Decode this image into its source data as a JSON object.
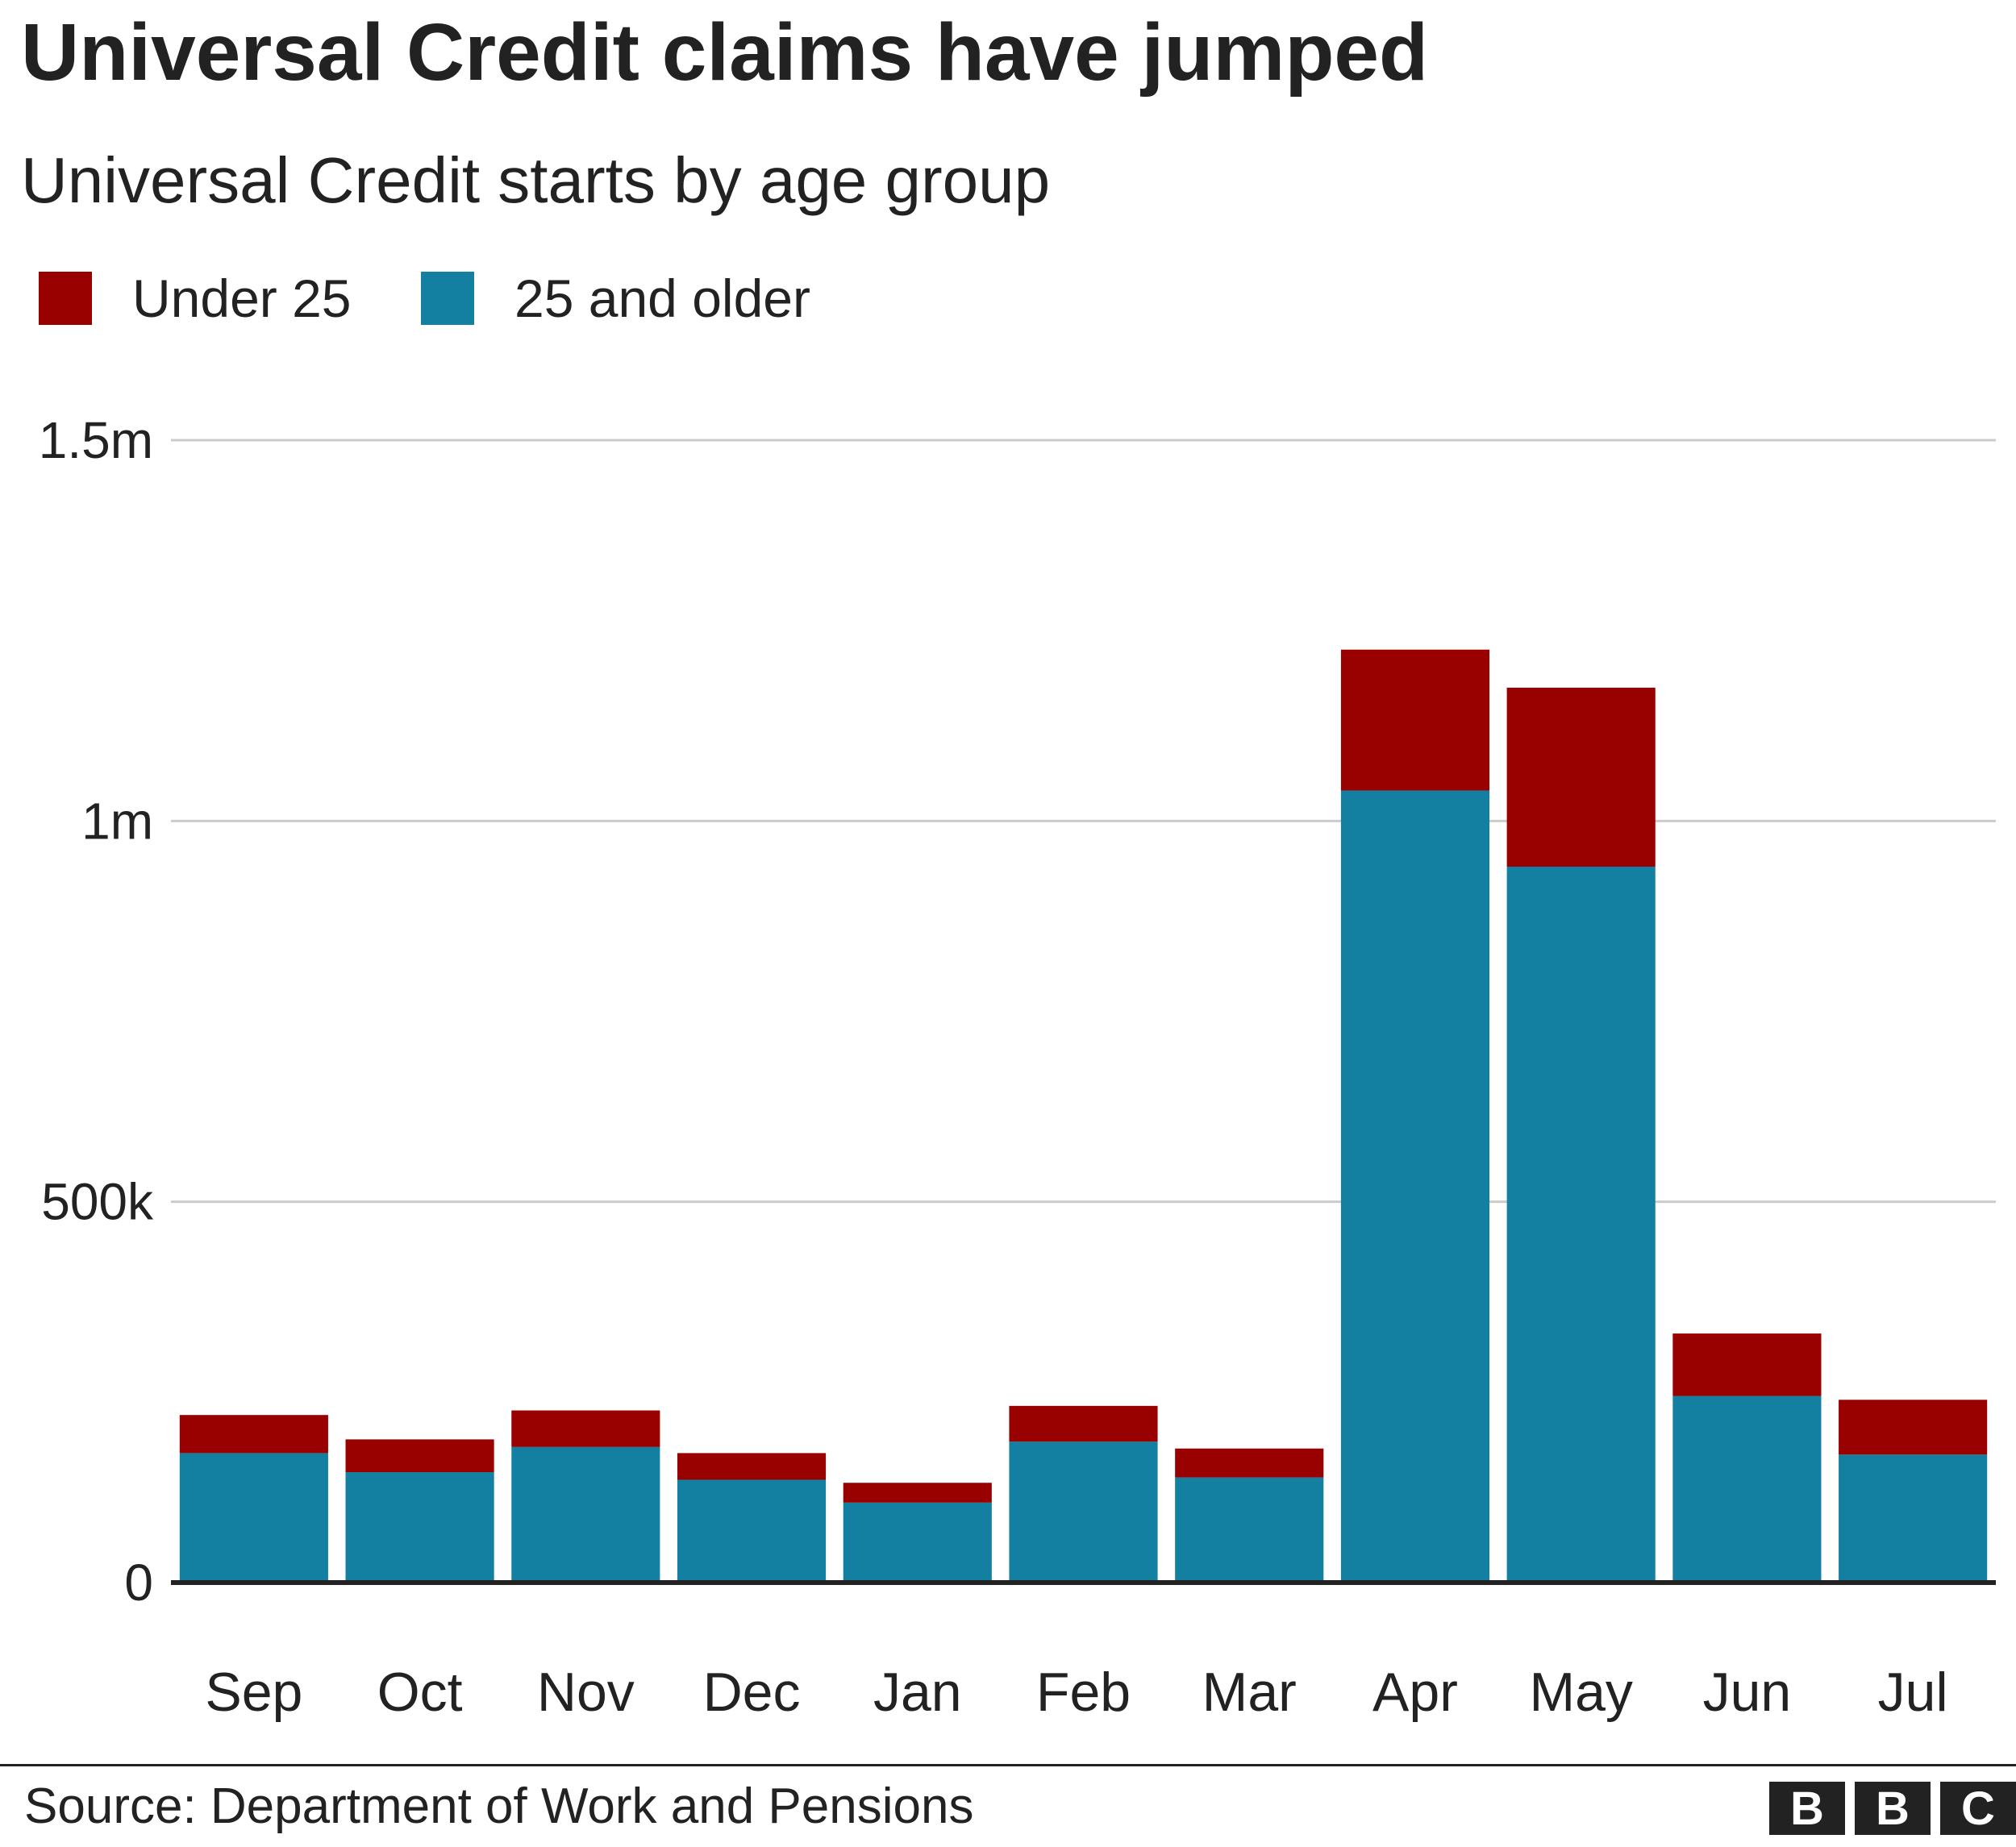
{
  "chart_data": {
    "type": "bar",
    "stacked": true,
    "title": "Universal Credit claims have jumped",
    "subtitle": "Universal Credit starts by age group",
    "categories": [
      "Sep",
      "Oct",
      "Nov",
      "Dec",
      "Jan",
      "Feb",
      "Mar",
      "Apr",
      "May",
      "Jun",
      "Jul"
    ],
    "series": [
      {
        "name": "25 and older",
        "color": "#1380a1",
        "values": [
          170000,
          145000,
          178000,
          135000,
          105000,
          185000,
          138000,
          1040000,
          940000,
          245000,
          168000
        ]
      },
      {
        "name": "Under 25",
        "color": "#990000",
        "values": [
          50000,
          43000,
          48000,
          35000,
          26000,
          47000,
          38000,
          185000,
          235000,
          82000,
          72000
        ]
      }
    ],
    "y_ticks": [
      {
        "value": 0,
        "label": "0"
      },
      {
        "value": 500000,
        "label": "500k"
      },
      {
        "value": 1000000,
        "label": "1m"
      },
      {
        "value": 1500000,
        "label": "1.5m"
      }
    ],
    "ylim": [
      0,
      1500000
    ],
    "grid": true,
    "legend_position": "top-left"
  },
  "footer": {
    "source": "Source: Department of Work and Pensions",
    "logo_letters": [
      "B",
      "B",
      "C"
    ]
  }
}
